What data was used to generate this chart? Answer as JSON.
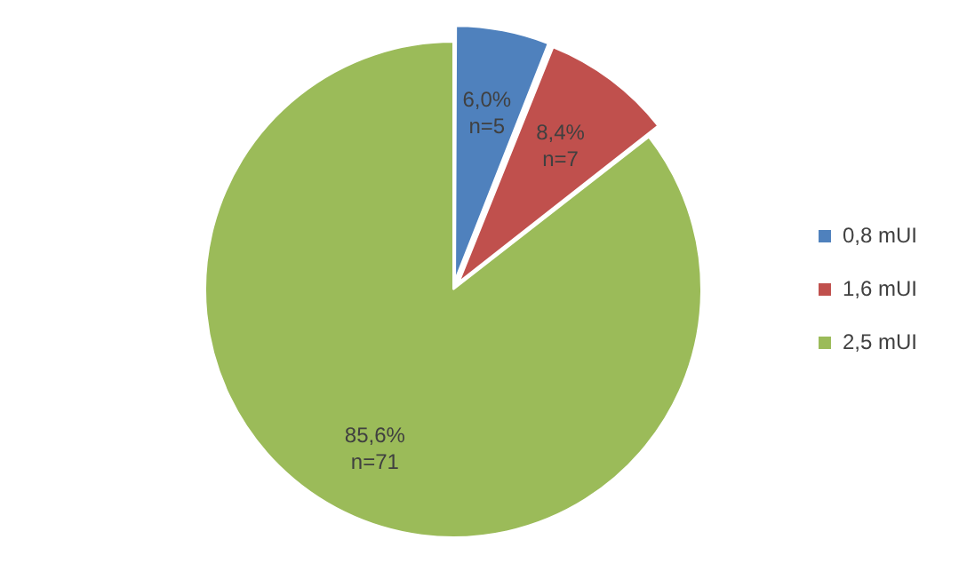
{
  "chart_data": {
    "type": "pie",
    "categories": [
      "0,8 mUI",
      "1,6 mUI",
      "2,5 mUI"
    ],
    "values": [
      5,
      7,
      71
    ],
    "colors": [
      "#4f81bd",
      "#c0504d",
      "#9bbb59"
    ],
    "value_labels": [
      "6,0%\nn=5",
      "8,4%\nn=7",
      "85,6%\nn=71"
    ],
    "legend": "right"
  }
}
